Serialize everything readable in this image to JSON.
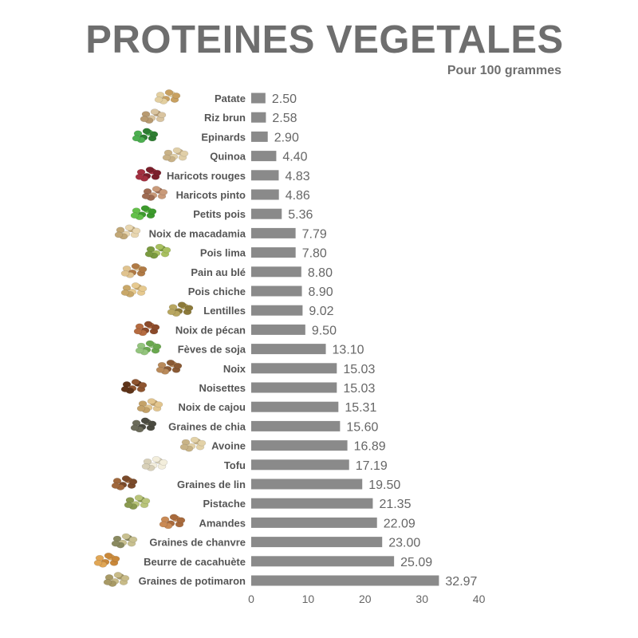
{
  "title": "PROTEINES VEGETALES",
  "subtitle": "Pour 100 grammes",
  "colors": {
    "bar": "#8a8a8a",
    "title": "#6e6e6e",
    "text": "#555555"
  },
  "chart_data": {
    "type": "bar",
    "orientation": "horizontal",
    "title": "PROTEINES VEGETALES",
    "subtitle": "Pour 100 grammes",
    "xlabel": "",
    "ylabel": "",
    "xlim": [
      0,
      40
    ],
    "xticks": [
      "0",
      "10",
      "20",
      "30",
      "40"
    ],
    "grid": false,
    "categories": [
      "Patate",
      "Riz brun",
      "Epinards",
      "Quinoa",
      "Haricots rouges",
      "Haricots pinto",
      "Petits pois",
      "Noix de macadamia",
      "Pois lima",
      "Pain au blé",
      "Pois chiche",
      "Lentilles",
      "Noix de pécan",
      "Fèves de soja",
      "Noix",
      "Noisettes",
      "Noix de cajou",
      "Graines de chia",
      "Avoine",
      "Tofu",
      "Graines de lin",
      "Pistache",
      "Amandes",
      "Graines de chanvre",
      "Beurre de cacahuète",
      "Graines de potimaron"
    ],
    "values": [
      2.5,
      2.58,
      2.9,
      4.4,
      4.83,
      4.86,
      5.36,
      7.79,
      7.8,
      8.8,
      8.9,
      9.02,
      9.5,
      13.1,
      15.03,
      15.03,
      15.31,
      15.6,
      16.89,
      17.19,
      19.5,
      21.35,
      22.09,
      23.0,
      25.09,
      32.97
    ],
    "value_labels": [
      "2.50",
      "2.58",
      "2.90",
      "4.40",
      "4.83",
      "4.86",
      "5.36",
      "7.79",
      "7.80",
      "8.80",
      "8.90",
      "9.02",
      "9.50",
      "13.10",
      "15.03",
      "15.03",
      "15.31",
      "15.60",
      "16.89",
      "17.19",
      "19.50",
      "21.35",
      "22.09",
      "23.00",
      "25.09",
      "32.97"
    ],
    "icons": [
      "potato-icon",
      "rice-icon",
      "spinach-icon",
      "quinoa-icon",
      "kidney-beans-icon",
      "pinto-beans-icon",
      "peas-icon",
      "macadamia-icon",
      "lima-beans-icon",
      "bread-icon",
      "chickpeas-icon",
      "lentils-icon",
      "pecan-icon",
      "soybeans-icon",
      "walnut-icon",
      "hazelnut-icon",
      "cashew-icon",
      "chia-seeds-icon",
      "oats-icon",
      "tofu-icon",
      "flax-seeds-icon",
      "pistachio-icon",
      "almonds-icon",
      "hemp-seeds-icon",
      "peanut-butter-icon",
      "pumpkin-seeds-icon"
    ]
  }
}
